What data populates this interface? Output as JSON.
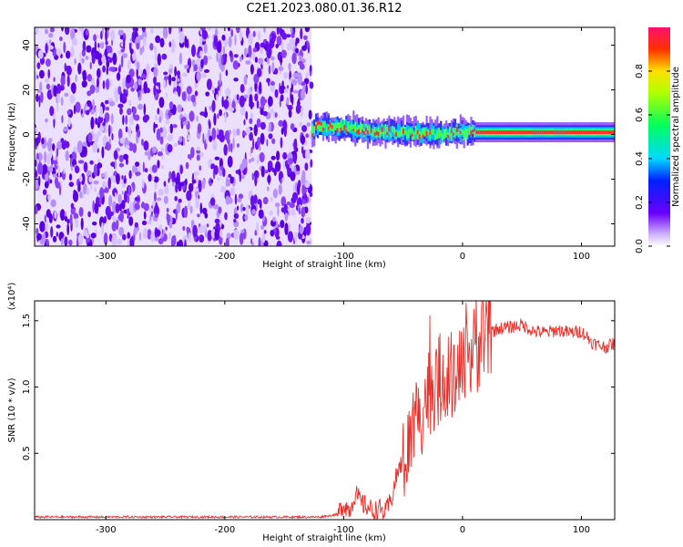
{
  "title": "C2E1.2023.080.01.36.R12",
  "chart_data": [
    {
      "type": "heatmap",
      "xlabel": "Height of straight line (km)",
      "ylabel": "Frequency (Hz)",
      "xlim": [
        -360,
        128
      ],
      "ylim": [
        -50,
        48
      ],
      "x_ticks": [
        "-300",
        "-200",
        "-100",
        "0",
        "100"
      ],
      "y_ticks": [
        "-40",
        "-20",
        "0",
        "20",
        "40"
      ],
      "colorbar": {
        "label": "Normalized spectral amplitude",
        "range": [
          0,
          1
        ],
        "ticks": [
          "0.0",
          "0.2",
          "0.4",
          "0.6",
          "0.8"
        ]
      },
      "noise_region_x": [
        -360,
        -127
      ],
      "signal_band": [
        {
          "x": -125,
          "freq": 4
        },
        {
          "x": -100,
          "freq": 3
        },
        {
          "x": -75,
          "freq": 1
        },
        {
          "x": -50,
          "freq": 1
        },
        {
          "x": -25,
          "freq": 0
        },
        {
          "x": 0,
          "freq": 1
        },
        {
          "x": 25,
          "freq": 1
        },
        {
          "x": 50,
          "freq": 1
        },
        {
          "x": 75,
          "freq": 1
        },
        {
          "x": 100,
          "freq": 1
        },
        {
          "x": 128,
          "freq": 1
        }
      ]
    },
    {
      "type": "line",
      "xlabel": "Height of straight line (km)",
      "ylabel": "SNR (10 * v/v)",
      "y_multiplier": "(x10⁴)",
      "xlim": [
        -360,
        128
      ],
      "ylim": [
        0,
        1.65
      ],
      "x_ticks": [
        "-300",
        "-200",
        "-100",
        "0",
        "100"
      ],
      "y_ticks": [
        "0.5",
        "1.0",
        "1.5"
      ],
      "series": [
        {
          "color": "#e8302b",
          "x": [
            -360,
            -300,
            -200,
            -120,
            -105,
            -100,
            -95,
            -90,
            -85,
            -80,
            -75,
            -70,
            -65,
            -60,
            -55,
            -50,
            -45,
            -40,
            -35,
            -30,
            -25,
            -20,
            -15,
            -10,
            -5,
            0,
            5,
            10,
            15,
            20,
            25,
            30,
            40,
            50,
            60,
            70,
            80,
            90,
            100,
            110,
            120,
            125,
            128
          ],
          "y": [
            0.02,
            0.02,
            0.02,
            0.02,
            0.04,
            0.12,
            0.07,
            0.2,
            0.12,
            0.1,
            0.06,
            0.08,
            0.05,
            0.15,
            0.35,
            0.45,
            0.55,
            0.75,
            0.8,
            0.95,
            1.0,
            1.05,
            1.1,
            1.0,
            1.05,
            1.1,
            1.2,
            1.28,
            1.32,
            1.36,
            1.42,
            1.44,
            1.45,
            1.47,
            1.42,
            1.41,
            1.43,
            1.41,
            1.42,
            1.33,
            1.3,
            1.32,
            1.33
          ]
        }
      ]
    }
  ],
  "colors": {
    "line": "#e8302b",
    "noise_purple": "#7a2cf0",
    "background": "#ffffff"
  }
}
